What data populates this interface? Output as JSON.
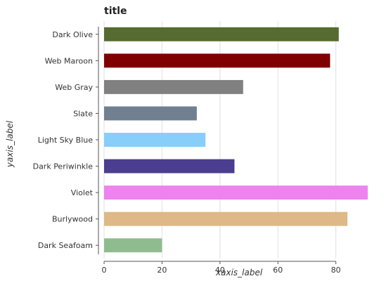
{
  "chart_data": {
    "type": "bar",
    "orientation": "horizontal",
    "title": "title",
    "xlabel": "xaxis_label",
    "ylabel": "yaxis_label",
    "categories": [
      "Dark Seafoam",
      "Burlywood",
      "Violet",
      "Dark Periwinkle",
      "Light Sky Blue",
      "Slate",
      "Web Gray",
      "Web Maroon",
      "Dark Olive"
    ],
    "values": [
      20,
      84,
      91,
      45,
      35,
      32,
      48,
      78,
      81
    ],
    "colors": [
      "#8FBC8F",
      "#DEB887",
      "#EE82EE",
      "#4B3D8F",
      "#87CEFA",
      "#708090",
      "#808080",
      "#800000",
      "#556B2F"
    ],
    "xlim": [
      0,
      92
    ],
    "xticks": [
      0,
      20,
      40,
      60,
      80
    ],
    "xtick_labels": [
      "0",
      "20",
      "40",
      "60",
      "80"
    ],
    "grid": "vertical"
  }
}
